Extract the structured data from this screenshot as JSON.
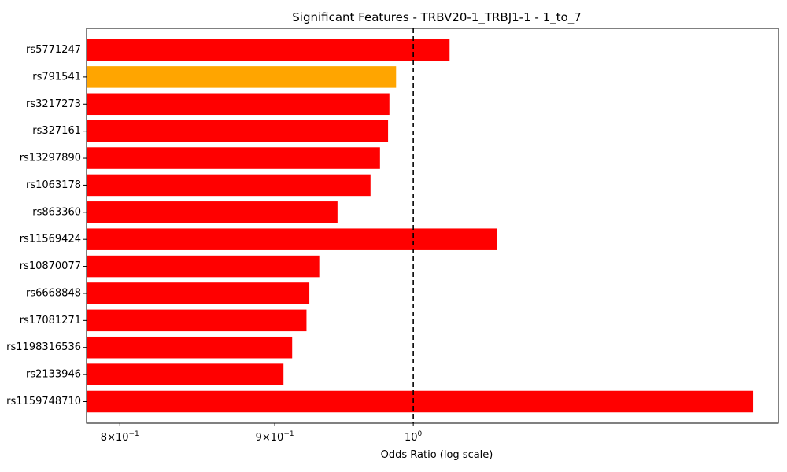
{
  "chart_data": {
    "type": "bar",
    "orientation": "horizontal",
    "title": "Significant Features - TRBV20-1_TRBJ1-1 - 1_to_7",
    "xlabel": "Odds Ratio (log scale)",
    "ylabel": "",
    "xscale": "log",
    "xlim": [
      0.78,
      1.32
    ],
    "reference_line": {
      "x": 1.0,
      "style": "dashed",
      "color": "#000000"
    },
    "categories": [
      "rs5771247",
      "rs791541",
      "rs3217273",
      "rs327161",
      "rs13297890",
      "rs1063178",
      "rs863360",
      "rs11569424",
      "rs10870077",
      "rs6668848",
      "rs17081271",
      "rs1198316536",
      "rs2133946",
      "rs1159748710"
    ],
    "values": [
      1.028,
      0.987,
      0.982,
      0.981,
      0.975,
      0.968,
      0.944,
      1.066,
      0.931,
      0.924,
      0.922,
      0.912,
      0.906,
      1.295
    ],
    "bar_colors": [
      "#ff0000",
      "#ffa500",
      "#ff0000",
      "#ff0000",
      "#ff0000",
      "#ff0000",
      "#ff0000",
      "#ff0000",
      "#ff0000",
      "#ff0000",
      "#ff0000",
      "#ff0000",
      "#ff0000",
      "#ff0000"
    ],
    "x_ticks": [
      {
        "value": 0.8,
        "mantissa": "8",
        "exp": "−1"
      },
      {
        "value": 0.9,
        "mantissa": "9",
        "exp": "−1"
      },
      {
        "value": 1.0,
        "mantissa": "10",
        "exp": "0",
        "base_only": true
      }
    ],
    "grid": false
  }
}
